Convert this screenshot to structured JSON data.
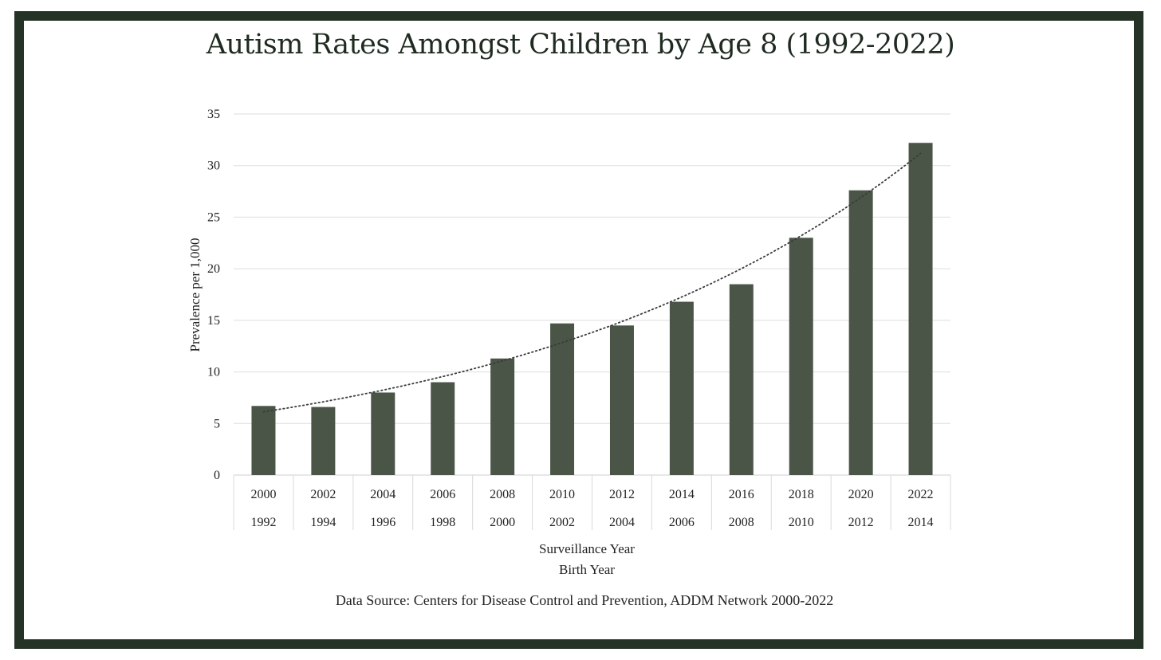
{
  "chart_data": {
    "type": "bar",
    "title": "Autism Rates Amongst Children by Age 8 (1992-2022)",
    "ylabel": "Prevalence per 1,000",
    "xlabel": "Surveillance Year",
    "xlabel2": "Birth Year",
    "source": "Data Source: Centers for Disease Control and Prevention, ADDM Network 2000-2022",
    "ylim": [
      0,
      35
    ],
    "yticks": [
      0,
      5,
      10,
      15,
      20,
      25,
      30,
      35
    ],
    "grid": true,
    "trendline": "exponential, dotted",
    "categories": [
      "2000",
      "2002",
      "2004",
      "2006",
      "2008",
      "2010",
      "2012",
      "2014",
      "2016",
      "2018",
      "2020",
      "2022"
    ],
    "categories2": [
      "1992",
      "1994",
      "1996",
      "1998",
      "2000",
      "2002",
      "2004",
      "2006",
      "2008",
      "2010",
      "2012",
      "2014"
    ],
    "values": [
      6.7,
      6.6,
      8.0,
      9.0,
      11.3,
      14.7,
      14.5,
      16.8,
      18.5,
      23.0,
      27.6,
      32.2
    ],
    "bar_color": "#4a5548",
    "frame_color": "#253326"
  }
}
